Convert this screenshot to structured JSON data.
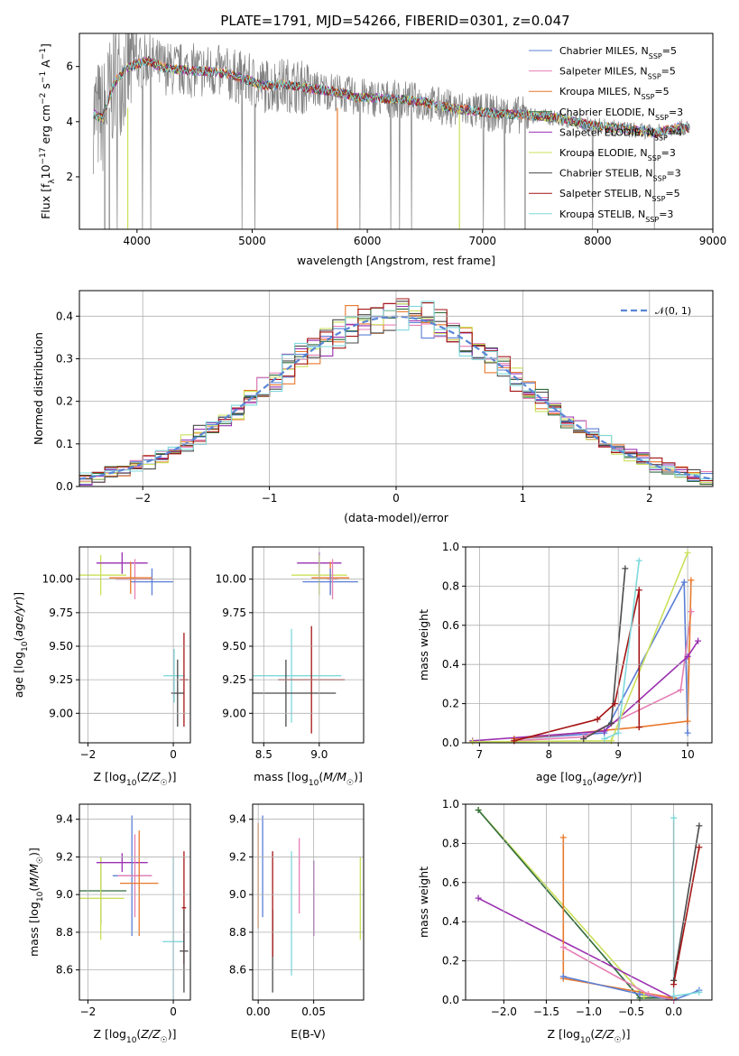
{
  "title": "PLATE=1791, MJD=54266, FIBERID=0301, z=0.047",
  "colors": {
    "Chabrier MILES": "#5b7fd6",
    "Salpeter MILES": "#e67fb4",
    "Kroupa MILES": "#e9782c",
    "Chabrier ELODIE": "#2f6b3a",
    "Salpeter ELODIE": "#9a2fb0",
    "Kroupa ELODIE": "#cbe05a",
    "Chabrier STELIB": "#4a4a4a",
    "Salpeter STELIB": "#a51414",
    "Kroupa STELIB": "#7fd8dc",
    "data": "#808080",
    "normal": "#5a86d6"
  },
  "chart_data": [
    {
      "id": "spectrum",
      "type": "line",
      "xlabel": "wavelength [Angstrom, rest frame]",
      "ylabel": "Flux [f_λ 10^-17 erg cm^-2 s^-1 A^-1]",
      "xlim": [
        3500,
        9000
      ],
      "ylim": [
        0.1,
        7.2
      ],
      "xticks": [
        "4000",
        "5000",
        "6000",
        "7000",
        "8000",
        "9000"
      ],
      "yticks": [
        "2",
        "4",
        "6"
      ],
      "legend_position": "right",
      "legend": [
        {
          "model": "Chabrier MILES",
          "label": "Chabrier MILES, N",
          "sub": "SSP",
          "tail": "=5"
        },
        {
          "model": "Salpeter MILES",
          "label": "Salpeter MILES, N",
          "sub": "SSP",
          "tail": "=5"
        },
        {
          "model": "Kroupa MILES",
          "label": "Kroupa MILES, N",
          "sub": "SSP",
          "tail": "=5"
        },
        {
          "model": "Chabrier ELODIE",
          "label": "Chabrier ELODIE, N",
          "sub": "SSP",
          "tail": "=3"
        },
        {
          "model": "Salpeter ELODIE",
          "label": "Salpeter ELODIE, N",
          "sub": "SSP",
          "tail": "=4"
        },
        {
          "model": "Kroupa ELODIE",
          "label": "Kroupa ELODIE, N",
          "sub": "SSP",
          "tail": "=3"
        },
        {
          "model": "Chabrier STELIB",
          "label": "Chabrier STELIB, N",
          "sub": "SSP",
          "tail": "=3"
        },
        {
          "model": "Salpeter STELIB",
          "label": "Salpeter STELIB, N",
          "sub": "SSP",
          "tail": "=5"
        },
        {
          "model": "Kroupa STELIB",
          "label": "Kroupa STELIB, N",
          "sub": "SSP",
          "tail": "=3"
        }
      ],
      "model_curve": {
        "x": [
          3620,
          3700,
          3800,
          3900,
          4000,
          4100,
          4200,
          4300,
          4500,
          4700,
          4900,
          5100,
          5300,
          5500,
          5700,
          5900,
          6100,
          6300,
          6500,
          6700,
          6900,
          7100,
          7300,
          7500,
          7700,
          7900,
          8100,
          8300,
          8500,
          8700,
          8800
        ],
        "y": [
          4.3,
          4.1,
          5.4,
          5.9,
          6.1,
          6.2,
          6.0,
          5.9,
          5.85,
          5.8,
          5.6,
          5.3,
          5.35,
          5.2,
          5.1,
          4.9,
          4.85,
          4.8,
          4.7,
          4.5,
          4.4,
          4.3,
          4.25,
          4.2,
          4.1,
          3.9,
          3.8,
          3.7,
          3.6,
          3.8,
          3.75
        ]
      }
    },
    {
      "id": "residuals",
      "type": "line",
      "xlabel": "(data-model)/error",
      "ylabel": "Normed distribution",
      "xlim": [
        -2.5,
        2.5
      ],
      "ylim": [
        0,
        0.46
      ],
      "xticks": [
        "−2",
        "−1",
        "0",
        "1",
        "2"
      ],
      "yticks": [
        "0.0",
        "0.1",
        "0.2",
        "0.3",
        "0.4"
      ],
      "legend": "𝒩(0, 1)",
      "legend_position": "top-right"
    },
    {
      "id": "age-vs-Z",
      "type": "scatter",
      "xlabel": "Z [log10(Z/Z☉)]",
      "ylabel": "age  [log10(age/yr)]",
      "xlim": [
        -2.2,
        0.4
      ],
      "ylim": [
        8.78,
        10.24
      ],
      "xticks": [
        "−2",
        "0"
      ],
      "yticks": [
        "9.00",
        "9.25",
        "9.50",
        "9.75",
        "10.00"
      ],
      "points": [
        {
          "model": "Kroupa ELODIE",
          "x": -1.7,
          "y": 10.03,
          "xerr": 0.6,
          "yerr": 0.15
        },
        {
          "model": "Salpeter ELODIE",
          "x": -1.2,
          "y": 10.12,
          "xerr": 0.6,
          "yerr": 0.08
        },
        {
          "model": "Salpeter MILES",
          "x": -0.9,
          "y": 10.0,
          "xerr": 0.45,
          "yerr": 0.15
        },
        {
          "model": "Chabrier MILES",
          "x": -0.5,
          "y": 9.98,
          "xerr": 0.5,
          "yerr": 0.1
        },
        {
          "model": "Kroupa MILES",
          "x": -1.0,
          "y": 10.01,
          "xerr": 0.5,
          "yerr": 0.12
        },
        {
          "model": "Kroupa STELIB",
          "x": 0.02,
          "y": 9.28,
          "xerr": 0.25,
          "yerr": 0.2
        },
        {
          "model": "Salpeter STELIB",
          "x": 0.25,
          "y": 9.25,
          "xerr": 0.1,
          "yerr": 0.35
        },
        {
          "model": "Chabrier STELIB",
          "x": 0.1,
          "y": 9.15,
          "xerr": 0.15,
          "yerr": 0.25
        }
      ]
    },
    {
      "id": "age-vs-mass",
      "type": "scatter",
      "xlabel": "mass [log10(M/M☉)]",
      "xlim": [
        8.4,
        9.4
      ],
      "ylim": [
        8.78,
        10.24
      ],
      "xticks": [
        "8.5",
        "9.0"
      ],
      "yticks": [
        "9.00",
        "9.25",
        "9.50",
        "9.75",
        "10.00"
      ],
      "points": [
        {
          "model": "Salpeter ELODIE",
          "x": 9.0,
          "y": 10.12,
          "xerr": 0.2,
          "yerr": 0.08
        },
        {
          "model": "Kroupa ELODIE",
          "x": 9.0,
          "y": 10.03,
          "xerr": 0.25,
          "yerr": 0.15
        },
        {
          "model": "Kroupa MILES",
          "x": 9.1,
          "y": 10.01,
          "xerr": 0.17,
          "yerr": 0.12
        },
        {
          "model": "Chabrier MILES",
          "x": 9.1,
          "y": 9.98,
          "xerr": 0.25,
          "yerr": 0.1
        },
        {
          "model": "Salpeter MILES",
          "x": 9.12,
          "y": 10.0,
          "xerr": 0.05,
          "yerr": 0.15
        },
        {
          "model": "Kroupa STELIB",
          "x": 8.75,
          "y": 9.28,
          "xerr": 0.45,
          "yerr": 0.35
        },
        {
          "model": "Salpeter STELIB",
          "x": 8.93,
          "y": 9.25,
          "xerr": 0.3,
          "yerr": 0.4
        },
        {
          "model": "Chabrier STELIB",
          "x": 8.7,
          "y": 9.15,
          "xerr": 0.45,
          "yerr": 0.25
        }
      ]
    },
    {
      "id": "massweight-vs-age",
      "type": "line",
      "xlabel": "age  [log10(age/yr)]",
      "ylabel": "mass weight",
      "xlim": [
        6.8,
        10.35
      ],
      "ylim": [
        0,
        1.0
      ],
      "xticks": [
        "7",
        "8",
        "9",
        "10"
      ],
      "yticks": [
        "0.0",
        "0.2",
        "0.4",
        "0.6",
        "0.8",
        "1.0"
      ],
      "series": [
        {
          "model": "Chabrier MILES",
          "x": [
            7.5,
            8.8,
            9.95,
            10.0
          ],
          "y": [
            0.02,
            0.05,
            0.82,
            0.05
          ]
        },
        {
          "model": "Salpeter MILES",
          "x": [
            7.5,
            8.5,
            9.9,
            10.05
          ],
          "y": [
            0.01,
            0.03,
            0.27,
            0.67
          ]
        },
        {
          "model": "Kroupa MILES",
          "x": [
            7.5,
            9.3,
            10.0,
            10.05
          ],
          "y": [
            0.02,
            0.08,
            0.11,
            0.83
          ]
        },
        {
          "model": "Salpeter ELODIE",
          "x": [
            6.9,
            8.8,
            10.0,
            10.15
          ],
          "y": [
            0.01,
            0.06,
            0.44,
            0.52
          ]
        },
        {
          "model": "Kroupa ELODIE",
          "x": [
            6.9,
            8.9,
            10.0
          ],
          "y": [
            0.005,
            0.01,
            0.97
          ]
        },
        {
          "model": "Chabrier STELIB",
          "x": [
            8.5,
            8.9,
            9.1
          ],
          "y": [
            0.02,
            0.1,
            0.89
          ]
        },
        {
          "model": "Salpeter STELIB",
          "x": [
            7.5,
            8.7,
            8.95,
            9.3,
            9.3
          ],
          "y": [
            0.01,
            0.12,
            0.2,
            0.78,
            0.08
          ]
        },
        {
          "model": "Kroupa STELIB",
          "x": [
            8.8,
            9.0,
            9.3
          ],
          "y": [
            0.02,
            0.05,
            0.93
          ]
        }
      ]
    },
    {
      "id": "mass-vs-Z",
      "type": "scatter",
      "xlabel": "Z [log10(Z/Z☉)]",
      "ylabel": "mass [log10(M/M☉)]",
      "xlim": [
        -2.2,
        0.4
      ],
      "ylim": [
        8.44,
        9.48
      ],
      "xticks": [
        "−2",
        "0"
      ],
      "yticks": [
        "8.6",
        "8.8",
        "9.0",
        "9.2",
        "9.4"
      ],
      "points": [
        {
          "model": "Chabrier ELODIE",
          "x": -1.7,
          "y": 9.02,
          "xerr": 0.6,
          "yerr": 0.18
        },
        {
          "model": "Kroupa ELODIE",
          "x": -1.7,
          "y": 8.98,
          "xerr": 0.55,
          "yerr": 0.22
        },
        {
          "model": "Salpeter ELODIE",
          "x": -1.2,
          "y": 9.17,
          "xerr": 0.6,
          "yerr": 0.05
        },
        {
          "model": "Chabrier MILES",
          "x": -0.97,
          "y": 9.1,
          "xerr": 0.45,
          "yerr": 0.32
        },
        {
          "model": "Salpeter MILES",
          "x": -0.9,
          "y": 9.1,
          "xerr": 0.4,
          "yerr": 0.22
        },
        {
          "model": "Kroupa MILES",
          "x": -0.8,
          "y": 9.06,
          "xerr": 0.45,
          "yerr": 0.28
        },
        {
          "model": "Kroupa STELIB",
          "x": 0.0,
          "y": 8.75,
          "xerr": 0.25,
          "yerr": 0.45
        },
        {
          "model": "Salpeter STELIB",
          "x": 0.25,
          "y": 8.93,
          "xerr": 0.05,
          "yerr": 0.3
        },
        {
          "model": "Chabrier STELIB",
          "x": 0.25,
          "y": 8.7,
          "xerr": 0.1,
          "yerr": 0.22
        }
      ]
    },
    {
      "id": "mass-vs-ebv",
      "type": "scatter",
      "xlabel": "E(B-V)",
      "xlim": [
        -0.005,
        0.095
      ],
      "ylim": [
        8.44,
        9.48
      ],
      "xticks": [
        "0.00",
        "0.05"
      ],
      "yticks": [
        "8.6",
        "8.8",
        "9.0",
        "9.2",
        "9.4"
      ],
      "points": [
        {
          "model": "Kroupa MILES",
          "x": 0.0,
          "y": 9.1,
          "yerr": 0.28
        },
        {
          "model": "Chabrier MILES",
          "x": 0.004,
          "y": 9.15,
          "yerr": 0.27
        },
        {
          "model": "Chabrier STELIB",
          "x": 0.013,
          "y": 8.7,
          "yerr": 0.22
        },
        {
          "model": "Salpeter STELIB",
          "x": 0.013,
          "y": 8.95,
          "yerr": 0.28
        },
        {
          "model": "Kroupa STELIB",
          "x": 0.03,
          "y": 8.9,
          "yerr": 0.33
        },
        {
          "model": "Salpeter MILES",
          "x": 0.037,
          "y": 9.1,
          "yerr": 0.2
        },
        {
          "model": "Salpeter ELODIE",
          "x": 0.05,
          "y": 8.98,
          "yerr": 0.2
        },
        {
          "model": "Kroupa ELODIE",
          "x": 0.092,
          "y": 8.98,
          "yerr": 0.22
        }
      ]
    },
    {
      "id": "massweight-vs-Z",
      "type": "line",
      "xlabel": "Z [log10(Z/Z☉)]",
      "ylabel": "mass weight",
      "xlim": [
        -2.45,
        0.45
      ],
      "ylim": [
        0,
        1.0
      ],
      "xticks": [
        "−2.0",
        "−1.5",
        "−1.0",
        "−0.5",
        "0.0"
      ],
      "yticks": [
        "0.0",
        "0.2",
        "0.4",
        "0.6",
        "0.8",
        "1.0"
      ],
      "series": [
        {
          "model": "Kroupa ELODIE",
          "x": [
            -2.3,
            -0.35,
            0.0
          ],
          "y": [
            0.97,
            0.02,
            0.01
          ]
        },
        {
          "model": "Chabrier ELODIE",
          "x": [
            -2.3,
            -0.4,
            0.0
          ],
          "y": [
            0.97,
            0.01,
            0.01
          ]
        },
        {
          "model": "Salpeter ELODIE",
          "x": [
            -2.3,
            0.0
          ],
          "y": [
            0.52,
            0.01
          ]
        },
        {
          "model": "Kroupa MILES",
          "x": [
            -1.3,
            -1.3,
            0.0
          ],
          "y": [
            0.83,
            0.11,
            0.01
          ]
        },
        {
          "model": "Chabrier MILES",
          "x": [
            -1.3,
            -0.4,
            0.0,
            0.3
          ],
          "y": [
            0.12,
            0.03,
            0.0,
            0.05
          ]
        },
        {
          "model": "Salpeter MILES",
          "x": [
            -1.3,
            -0.3,
            0.0
          ],
          "y": [
            0.27,
            0.03,
            0.0
          ]
        },
        {
          "model": "Kroupa STELIB",
          "x": [
            0.0,
            0.0,
            0.3
          ],
          "y": [
            0.93,
            0.02,
            0.04
          ]
        },
        {
          "model": "Chabrier STELIB",
          "x": [
            0.0,
            0.3
          ],
          "y": [
            0.1,
            0.89
          ]
        },
        {
          "model": "Salpeter STELIB",
          "x": [
            0.0,
            0.3
          ],
          "y": [
            0.08,
            0.78
          ]
        }
      ]
    }
  ]
}
